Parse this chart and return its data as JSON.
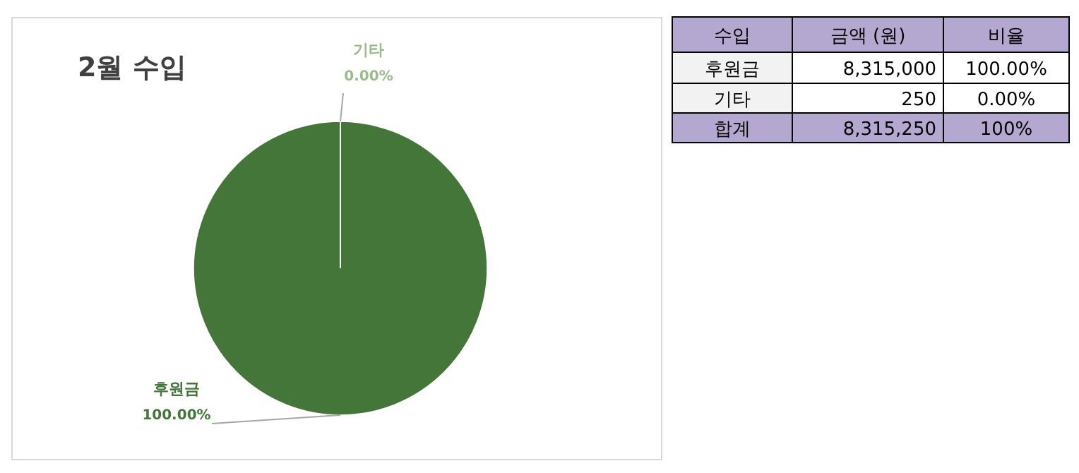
{
  "chart_data": {
    "type": "pie",
    "title": "2월 수입",
    "categories": [
      "후원금",
      "기타"
    ],
    "values": [
      100.0,
      0.0
    ],
    "colors": [
      "#44763a",
      "#9bbb8a"
    ],
    "value_labels": [
      "100.00%",
      "0.00%"
    ],
    "data_labels": true,
    "annotations": [
      "수입",
      "금액 (원)",
      "비율",
      "8,315,000",
      "250",
      "합계",
      "8,315,250",
      "100%"
    ]
  }
}
